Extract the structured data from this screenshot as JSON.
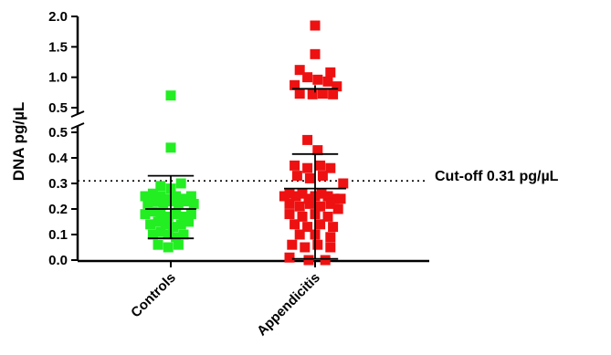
{
  "chart_data": {
    "type": "scatter",
    "ylabel": "DNA pg/µL",
    "y_scale": "broken",
    "y_segments": [
      {
        "range": [
          0.5,
          2.0
        ],
        "ticks": [
          "0.5",
          "1.0",
          "1.5",
          "2.0"
        ]
      },
      {
        "range": [
          0.0,
          0.5
        ],
        "ticks": [
          "0.0",
          "0.1",
          "0.2",
          "0.3",
          "0.4",
          "0.5"
        ]
      }
    ],
    "categories": [
      "Controls",
      "Appendicitis"
    ],
    "series": [
      {
        "color": "#22ee22",
        "points": [
          [
            -0.2,
            0.25
          ],
          [
            -0.14,
            0.26
          ],
          [
            -0.08,
            0.25
          ],
          [
            -0.02,
            0.24
          ],
          [
            0.04,
            0.25
          ],
          [
            0.1,
            0.24
          ],
          [
            0.16,
            0.25
          ],
          [
            -0.18,
            0.22
          ],
          [
            -0.12,
            0.23
          ],
          [
            -0.06,
            0.22
          ],
          [
            0.0,
            0.23
          ],
          [
            0.06,
            0.22
          ],
          [
            0.12,
            0.23
          ],
          [
            0.18,
            0.22
          ],
          [
            -0.2,
            0.18
          ],
          [
            -0.14,
            0.19
          ],
          [
            -0.08,
            0.18
          ],
          [
            -0.02,
            0.17
          ],
          [
            0.04,
            0.18
          ],
          [
            0.1,
            0.17
          ],
          [
            0.16,
            0.18
          ],
          [
            -0.16,
            0.14
          ],
          [
            -0.1,
            0.15
          ],
          [
            -0.04,
            0.14
          ],
          [
            0.02,
            0.13
          ],
          [
            0.08,
            0.14
          ],
          [
            0.14,
            0.15
          ],
          [
            -0.14,
            0.1
          ],
          [
            -0.08,
            0.11
          ],
          [
            -0.02,
            0.1
          ],
          [
            0.04,
            0.09
          ],
          [
            0.1,
            0.1
          ],
          [
            -0.1,
            0.06
          ],
          [
            -0.02,
            0.05
          ],
          [
            0.06,
            0.06
          ],
          [
            -0.08,
            0.29
          ],
          [
            0.0,
            0.28
          ],
          [
            0.08,
            0.3
          ],
          [
            0.0,
            0.44
          ],
          [
            0.0,
            0.7
          ]
        ],
        "mean": 0.2,
        "sd_low": 0.085,
        "sd_high": 0.33
      },
      {
        "color": "#ee1111",
        "points": [
          [
            0.0,
            1.85
          ],
          [
            0.0,
            1.38
          ],
          [
            -0.12,
            1.12
          ],
          [
            0.12,
            1.08
          ],
          [
            -0.06,
            1.0
          ],
          [
            0.02,
            0.96
          ],
          [
            0.1,
            0.93
          ],
          [
            -0.16,
            0.87
          ],
          [
            0.17,
            0.85
          ],
          [
            -0.12,
            0.73
          ],
          [
            -0.02,
            0.72
          ],
          [
            0.06,
            0.73
          ],
          [
            0.14,
            0.72
          ],
          [
            -0.06,
            0.47
          ],
          [
            0.02,
            0.43
          ],
          [
            -0.16,
            0.37
          ],
          [
            -0.06,
            0.36
          ],
          [
            0.04,
            0.37
          ],
          [
            0.12,
            0.36
          ],
          [
            -0.14,
            0.33
          ],
          [
            -0.04,
            0.32
          ],
          [
            0.06,
            0.33
          ],
          [
            -0.24,
            0.25
          ],
          [
            -0.2,
            0.26
          ],
          [
            -0.15,
            0.25
          ],
          [
            -0.1,
            0.26
          ],
          [
            -0.05,
            0.24
          ],
          [
            0.0,
            0.25
          ],
          [
            0.05,
            0.26
          ],
          [
            0.1,
            0.25
          ],
          [
            0.15,
            0.24
          ],
          [
            0.2,
            0.24
          ],
          [
            -0.2,
            0.22
          ],
          [
            -0.12,
            0.21
          ],
          [
            -0.04,
            0.22
          ],
          [
            0.04,
            0.21
          ],
          [
            0.12,
            0.22
          ],
          [
            0.18,
            0.2
          ],
          [
            0.22,
            0.3
          ],
          [
            -0.2,
            0.18
          ],
          [
            -0.1,
            0.17
          ],
          [
            0.0,
            0.18
          ],
          [
            0.1,
            0.17
          ],
          [
            -0.16,
            0.14
          ],
          [
            -0.06,
            0.13
          ],
          [
            0.04,
            0.14
          ],
          [
            0.14,
            0.13
          ],
          [
            -0.12,
            0.1
          ],
          [
            0.0,
            0.1
          ],
          [
            0.12,
            0.09
          ],
          [
            -0.18,
            0.06
          ],
          [
            -0.08,
            0.05
          ],
          [
            0.02,
            0.06
          ],
          [
            0.12,
            0.05
          ],
          [
            -0.2,
            0.01
          ],
          [
            -0.05,
            0.0
          ],
          [
            0.08,
            0.0
          ]
        ],
        "mean": 0.28,
        "sd_low": 0.005,
        "sd_high": 0.415,
        "extra_bar": 0.81
      }
    ],
    "cutoff": {
      "value": 0.31,
      "label": "Cut-off 0.31 pg/µL"
    }
  }
}
